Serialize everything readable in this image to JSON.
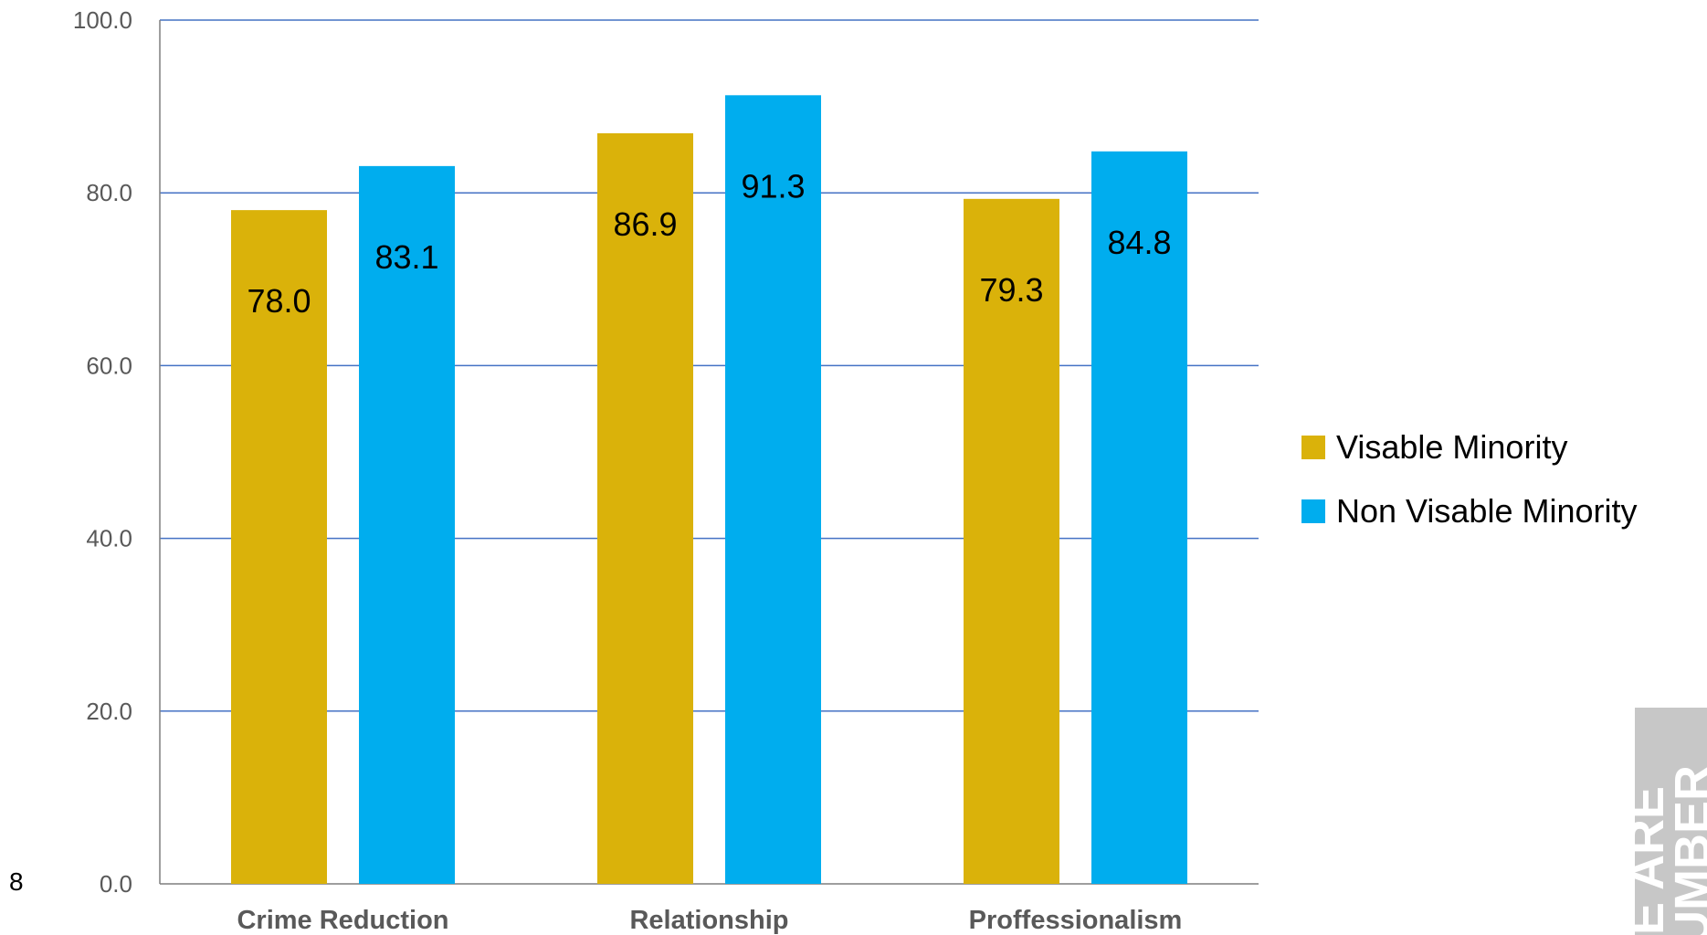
{
  "chart_data": {
    "type": "bar",
    "categories": [
      "Crime Reduction",
      "Relationship",
      "Proffessionalism"
    ],
    "series": [
      {
        "name": "Visable Minority",
        "values": [
          78.0,
          86.9,
          79.3
        ],
        "color": "#DAB20A"
      },
      {
        "name": "Non Visable Minority",
        "values": [
          83.1,
          91.3,
          84.8
        ],
        "color": "#00ADEE"
      }
    ],
    "data_labels": [
      "78.0",
      "83.1",
      "86.9",
      "91.3",
      "79.3",
      "84.8"
    ],
    "ylim": [
      0,
      100
    ],
    "yticks": [
      "0.0",
      "20.0",
      "40.0",
      "60.0",
      "80.0",
      "100.0"
    ],
    "grid": true,
    "legend_position": "right"
  },
  "slide_number": "8",
  "watermark": {
    "line1": "WE ARE",
    "line2": "NUMBER"
  }
}
